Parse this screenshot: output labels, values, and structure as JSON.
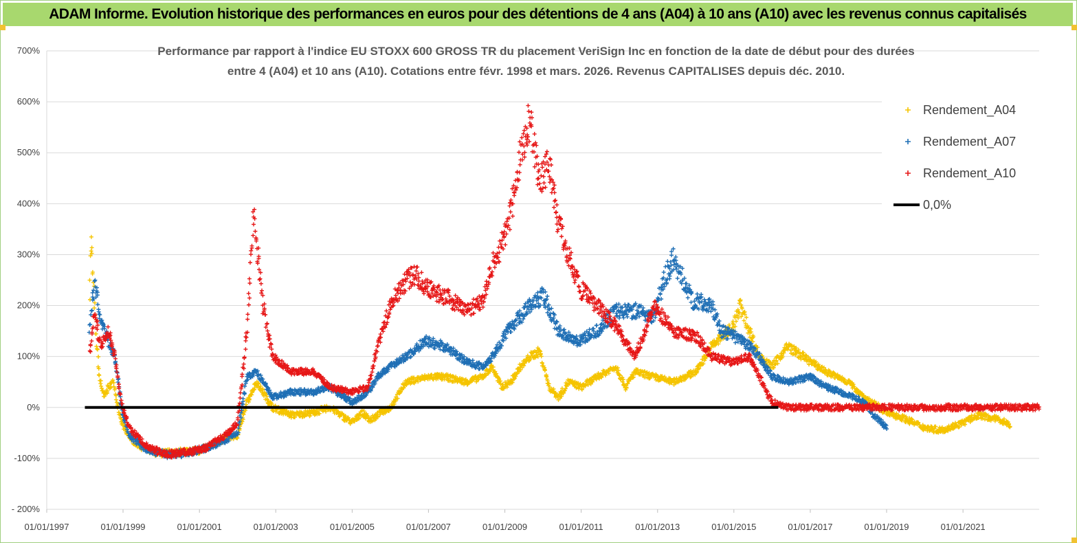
{
  "banner": {
    "title": "ADAM Informe. Evolution historique des performances en euros pour des détentions de 4 ans (A04) à 10 ans (A10) avec les revenus connus capitalisés"
  },
  "chart_data": {
    "type": "scatter",
    "title_lines": [
      "Performance par rapport à l'indice EU STOXX 600 GROSS TR  du placement VeriSign Inc en fonction de la date de début pour des durées",
      "entre 4 (A04) et 10 ans (A10). Cotations entre févr. 1998 et mars. 2026. Revenus CAPITALISES depuis déc. 2010."
    ],
    "xlabel": "",
    "ylabel": "",
    "x_range": [
      "1997-01-01",
      "2022-12-31"
    ],
    "y_range": [
      -200,
      700
    ],
    "x_ticks": [
      "01/01/1997",
      "01/01/1999",
      "01/01/2001",
      "01/01/2003",
      "01/01/2005",
      "01/01/2007",
      "01/01/2009",
      "01/01/2011",
      "01/01/2013",
      "01/01/2015",
      "01/01/2017",
      "01/01/2019",
      "01/01/2021"
    ],
    "y_ticks": [
      "- 200%",
      "-100%",
      "0%",
      "100%",
      "200%",
      "300%",
      "400%",
      "500%",
      "600%",
      "700%"
    ],
    "grid": "horizontal",
    "legend_position": "top-right",
    "series": [
      {
        "name": "Rendement_A04",
        "color": "#f5c400",
        "marker": "plus",
        "points": [
          [
            "1998-02-15",
            230
          ],
          [
            "1998-03-01",
            330
          ],
          [
            "1998-03-20",
            250
          ],
          [
            "1998-04-15",
            150
          ],
          [
            "1998-05-20",
            60
          ],
          [
            "1998-07-01",
            20
          ],
          [
            "1998-08-15",
            40
          ],
          [
            "1998-10-01",
            50
          ],
          [
            "1998-12-01",
            -20
          ],
          [
            "1999-02-01",
            -50
          ],
          [
            "1999-05-01",
            -70
          ],
          [
            "1999-09-01",
            -85
          ],
          [
            "2000-01-01",
            -90
          ],
          [
            "2000-06-01",
            -88
          ],
          [
            "2001-01-01",
            -85
          ],
          [
            "2001-06-01",
            -70
          ],
          [
            "2001-09-01",
            -60
          ],
          [
            "2002-01-01",
            -55
          ],
          [
            "2002-04-01",
            10
          ],
          [
            "2002-07-01",
            50
          ],
          [
            "2002-09-01",
            30
          ],
          [
            "2002-12-01",
            0
          ],
          [
            "2003-06-01",
            -15
          ],
          [
            "2004-01-01",
            -10
          ],
          [
            "2004-06-01",
            0
          ],
          [
            "2005-01-01",
            -30
          ],
          [
            "2005-04-01",
            -10
          ],
          [
            "2005-07-01",
            -25
          ],
          [
            "2005-10-01",
            -10
          ],
          [
            "2006-01-01",
            0
          ],
          [
            "2006-06-01",
            50
          ],
          [
            "2007-01-01",
            60
          ],
          [
            "2007-06-01",
            60
          ],
          [
            "2008-01-01",
            50
          ],
          [
            "2008-06-01",
            60
          ],
          [
            "2008-09-01",
            80
          ],
          [
            "2008-12-01",
            40
          ],
          [
            "2009-03-01",
            50
          ],
          [
            "2009-06-01",
            80
          ],
          [
            "2009-09-01",
            100
          ],
          [
            "2009-12-01",
            110
          ],
          [
            "2010-03-01",
            40
          ],
          [
            "2010-06-01",
            20
          ],
          [
            "2010-09-01",
            50
          ],
          [
            "2011-01-01",
            40
          ],
          [
            "2011-06-01",
            60
          ],
          [
            "2011-12-01",
            80
          ],
          [
            "2012-03-01",
            40
          ],
          [
            "2012-06-01",
            70
          ],
          [
            "2012-12-01",
            60
          ],
          [
            "2013-06-01",
            50
          ],
          [
            "2014-01-01",
            70
          ],
          [
            "2014-06-01",
            120
          ],
          [
            "2015-01-01",
            160
          ],
          [
            "2015-03-01",
            200
          ],
          [
            "2015-06-01",
            150
          ],
          [
            "2015-09-01",
            100
          ],
          [
            "2016-01-01",
            80
          ],
          [
            "2016-06-01",
            120
          ],
          [
            "2017-01-01",
            90
          ],
          [
            "2017-06-01",
            70
          ],
          [
            "2018-01-01",
            50
          ],
          [
            "2018-06-01",
            20
          ],
          [
            "2019-01-01",
            -10
          ],
          [
            "2019-06-01",
            -20
          ],
          [
            "2020-01-01",
            -40
          ],
          [
            "2020-06-01",
            -45
          ],
          [
            "2021-01-01",
            -30
          ],
          [
            "2021-06-01",
            -15
          ],
          [
            "2022-01-01",
            -25
          ],
          [
            "2022-04-01",
            -35
          ]
        ]
      },
      {
        "name": "Rendement_A07",
        "color": "#1f6fb5",
        "marker": "plus",
        "points": [
          [
            "1998-02-15",
            150
          ],
          [
            "1998-04-01",
            250
          ],
          [
            "1998-06-01",
            170
          ],
          [
            "1998-08-15",
            130
          ],
          [
            "1998-10-15",
            100
          ],
          [
            "1998-12-15",
            0
          ],
          [
            "1999-03-01",
            -55
          ],
          [
            "1999-09-01",
            -85
          ],
          [
            "2000-03-01",
            -92
          ],
          [
            "2000-09-01",
            -90
          ],
          [
            "2001-03-01",
            -80
          ],
          [
            "2001-09-01",
            -65
          ],
          [
            "2002-01-01",
            -50
          ],
          [
            "2002-04-01",
            60
          ],
          [
            "2002-07-01",
            70
          ],
          [
            "2002-12-01",
            20
          ],
          [
            "2003-06-01",
            30
          ],
          [
            "2004-01-01",
            30
          ],
          [
            "2004-06-01",
            40
          ],
          [
            "2005-01-01",
            10
          ],
          [
            "2005-06-01",
            30
          ],
          [
            "2005-09-01",
            60
          ],
          [
            "2006-01-01",
            80
          ],
          [
            "2006-06-01",
            100
          ],
          [
            "2006-12-01",
            130
          ],
          [
            "2007-06-01",
            120
          ],
          [
            "2008-01-01",
            90
          ],
          [
            "2008-06-01",
            80
          ],
          [
            "2008-09-01",
            100
          ],
          [
            "2008-12-01",
            130
          ],
          [
            "2009-03-01",
            160
          ],
          [
            "2009-06-01",
            180
          ],
          [
            "2009-09-01",
            200
          ],
          [
            "2010-01-01",
            220
          ],
          [
            "2010-06-01",
            150
          ],
          [
            "2010-12-01",
            130
          ],
          [
            "2011-06-01",
            150
          ],
          [
            "2011-12-01",
            190
          ],
          [
            "2012-06-01",
            190
          ],
          [
            "2012-12-01",
            180
          ],
          [
            "2013-03-01",
            250
          ],
          [
            "2013-06-01",
            290
          ],
          [
            "2013-12-01",
            210
          ],
          [
            "2014-06-01",
            200
          ],
          [
            "2014-09-01",
            150
          ],
          [
            "2015-01-01",
            140
          ],
          [
            "2015-06-01",
            120
          ],
          [
            "2015-09-01",
            100
          ],
          [
            "2016-01-01",
            60
          ],
          [
            "2016-06-01",
            50
          ],
          [
            "2017-01-01",
            60
          ],
          [
            "2017-06-01",
            40
          ],
          [
            "2018-01-01",
            25
          ],
          [
            "2018-06-01",
            10
          ],
          [
            "2018-09-01",
            -15
          ],
          [
            "2019-01-01",
            -40
          ]
        ]
      },
      {
        "name": "Rendement_A10",
        "color": "#e61717",
        "marker": "plus",
        "points": [
          [
            "1998-02-15",
            110
          ],
          [
            "1998-04-01",
            190
          ],
          [
            "1998-06-01",
            120
          ],
          [
            "1998-08-15",
            150
          ],
          [
            "1998-10-15",
            100
          ],
          [
            "1998-12-15",
            10
          ],
          [
            "1999-03-01",
            -40
          ],
          [
            "1999-09-01",
            -80
          ],
          [
            "2000-03-01",
            -92
          ],
          [
            "2000-09-01",
            -88
          ],
          [
            "2001-03-01",
            -80
          ],
          [
            "2001-09-01",
            -55
          ],
          [
            "2002-01-01",
            -30
          ],
          [
            "2002-04-01",
            150
          ],
          [
            "2002-06-01",
            380
          ],
          [
            "2002-09-01",
            200
          ],
          [
            "2002-12-01",
            100
          ],
          [
            "2003-06-01",
            70
          ],
          [
            "2004-01-01",
            70
          ],
          [
            "2004-06-01",
            40
          ],
          [
            "2005-01-01",
            30
          ],
          [
            "2005-06-01",
            40
          ],
          [
            "2005-09-01",
            120
          ],
          [
            "2006-01-01",
            200
          ],
          [
            "2006-06-01",
            250
          ],
          [
            "2006-09-01",
            260
          ],
          [
            "2007-01-01",
            230
          ],
          [
            "2007-06-01",
            220
          ],
          [
            "2008-01-01",
            190
          ],
          [
            "2008-06-01",
            210
          ],
          [
            "2008-09-01",
            280
          ],
          [
            "2008-12-01",
            320
          ],
          [
            "2009-03-01",
            380
          ],
          [
            "2009-06-01",
            500
          ],
          [
            "2009-09-01",
            560
          ],
          [
            "2009-12-01",
            450
          ],
          [
            "2010-03-01",
            480
          ],
          [
            "2010-06-01",
            360
          ],
          [
            "2010-09-01",
            300
          ],
          [
            "2011-01-01",
            230
          ],
          [
            "2011-06-01",
            200
          ],
          [
            "2011-12-01",
            160
          ],
          [
            "2012-06-01",
            100
          ],
          [
            "2012-12-01",
            200
          ],
          [
            "2013-06-01",
            150
          ],
          [
            "2014-01-01",
            140
          ],
          [
            "2014-06-01",
            100
          ],
          [
            "2014-12-01",
            90
          ],
          [
            "2015-06-01",
            100
          ],
          [
            "2015-09-01",
            60
          ],
          [
            "2016-01-01",
            10
          ],
          [
            "2016-06-01",
            0
          ],
          [
            "2017-06-01",
            0
          ],
          [
            "2018-06-01",
            0
          ],
          [
            "2019-06-01",
            0
          ],
          [
            "2020-06-01",
            0
          ],
          [
            "2021-06-01",
            0
          ],
          [
            "2022-12-31",
            0
          ]
        ]
      },
      {
        "name": "0,0%",
        "color": "#000000",
        "marker": "line",
        "points": [
          [
            "1998-01-01",
            0
          ],
          [
            "2016-03-01",
            0
          ]
        ]
      }
    ]
  }
}
